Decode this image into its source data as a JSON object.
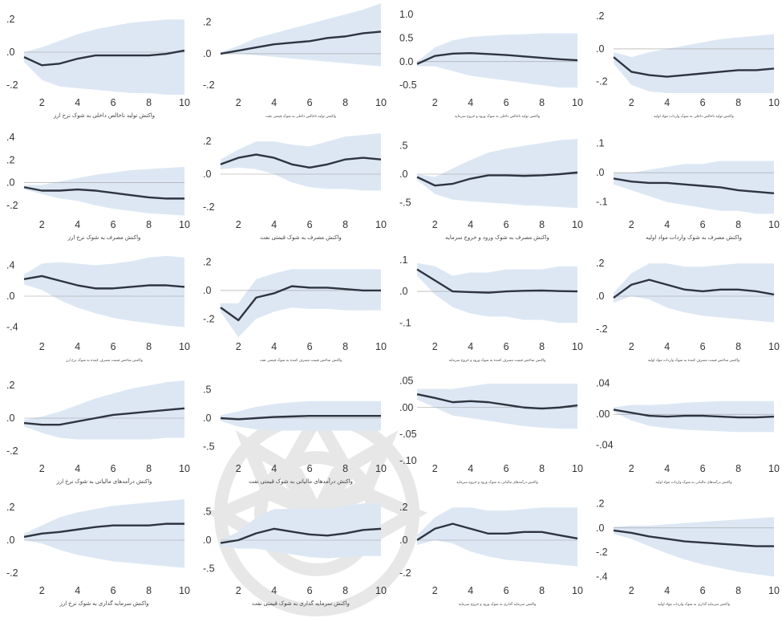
{
  "colors": {
    "band": "#dde7f4",
    "line": "#2e3440",
    "axis": "#9e9e9e",
    "text": "#333333"
  },
  "chart_data": [
    {
      "type": "line",
      "yticks": [
        ".2",
        ".0",
        "-.2"
      ],
      "ylim": [
        -0.26,
        0.26
      ],
      "xticks": [
        "2",
        "4",
        "6",
        "8",
        "10"
      ],
      "xlabel": "واکنش تولید ناخالص داخلی به شوک نرخ ارز",
      "values": [
        -0.03,
        -0.08,
        -0.07,
        -0.04,
        -0.02,
        -0.02,
        -0.02,
        -0.02,
        -0.01,
        0.01
      ],
      "lower": [
        -0.06,
        -0.17,
        -0.21,
        -0.22,
        -0.23,
        -0.24,
        -0.25,
        -0.25,
        -0.26,
        -0.26
      ],
      "upper": [
        0.0,
        0.03,
        0.07,
        0.11,
        0.14,
        0.16,
        0.18,
        0.19,
        0.2,
        0.2
      ]
    },
    {
      "type": "line",
      "yticks": [
        ".2",
        ".0",
        "-.2"
      ],
      "ylim": [
        -0.26,
        0.28
      ],
      "xticks": [
        "2",
        "4",
        "6",
        "8",
        "10"
      ],
      "xlabel": "واکنش تولید ناخالص داخلی به شوک قیمتی نفت",
      "values": [
        0.0,
        0.02,
        0.04,
        0.06,
        0.07,
        0.08,
        0.1,
        0.11,
        0.13,
        0.14
      ],
      "lower": [
        0.0,
        0.0,
        -0.01,
        -0.02,
        -0.03,
        -0.04,
        -0.05,
        -0.06,
        -0.07,
        -0.08
      ],
      "upper": [
        0.01,
        0.05,
        0.1,
        0.13,
        0.16,
        0.19,
        0.22,
        0.25,
        0.28,
        0.32
      ]
    },
    {
      "type": "line",
      "yticks": [
        "1.0",
        "0.5",
        "0.0",
        "-0.5"
      ],
      "ylim": [
        -0.7,
        1.1
      ],
      "xticks": [
        "2",
        "4",
        "6",
        "8",
        "10"
      ],
      "xlabel": "واکنش تولید ناخالص داخلی به شوک ورود و خروج سرمایه",
      "values": [
        -0.05,
        0.12,
        0.17,
        0.18,
        0.16,
        0.14,
        0.11,
        0.08,
        0.05,
        0.03
      ],
      "lower": [
        -0.1,
        -0.1,
        -0.2,
        -0.3,
        -0.35,
        -0.4,
        -0.45,
        -0.5,
        -0.55,
        -0.55
      ],
      "upper": [
        0.0,
        0.3,
        0.45,
        0.52,
        0.55,
        0.57,
        0.58,
        0.6,
        0.6,
        0.6
      ]
    },
    {
      "type": "line",
      "yticks": [
        ".2",
        ".0",
        "-.2"
      ],
      "ylim": [
        -0.28,
        0.24
      ],
      "xticks": [
        "2",
        "4",
        "6",
        "8",
        "10"
      ],
      "xlabel": "واکنش تولید ناخالص داخلی به شوک واردات مواد اولیه",
      "values": [
        -0.05,
        -0.14,
        -0.16,
        -0.17,
        -0.16,
        -0.15,
        -0.14,
        -0.13,
        -0.13,
        -0.12
      ],
      "lower": [
        -0.09,
        -0.22,
        -0.26,
        -0.27,
        -0.27,
        -0.27,
        -0.27,
        -0.27,
        -0.27,
        -0.27
      ],
      "upper": [
        -0.02,
        -0.05,
        -0.02,
        0.0,
        0.02,
        0.04,
        0.06,
        0.07,
        0.08,
        0.09
      ]
    },
    {
      "type": "line",
      "yticks": [
        ".4",
        ".2",
        ".0",
        "-.2"
      ],
      "ylim": [
        -0.3,
        0.45
      ],
      "xticks": [
        "2",
        "4",
        "6",
        "8",
        "10"
      ],
      "xlabel": "واکنش مصرف به شوک نرخ ارز",
      "values": [
        -0.04,
        -0.07,
        -0.07,
        -0.06,
        -0.07,
        -0.09,
        -0.11,
        -0.13,
        -0.14,
        -0.14
      ],
      "lower": [
        -0.06,
        -0.1,
        -0.14,
        -0.16,
        -0.2,
        -0.23,
        -0.25,
        -0.27,
        -0.28,
        -0.29
      ],
      "upper": [
        -0.02,
        -0.02,
        0.01,
        0.04,
        0.07,
        0.09,
        0.11,
        0.12,
        0.13,
        0.14
      ]
    },
    {
      "type": "line",
      "yticks": [
        ".2",
        ".0",
        "-.2"
      ],
      "ylim": [
        -0.26,
        0.26
      ],
      "xticks": [
        "2",
        "4",
        "6",
        "8",
        "10"
      ],
      "xlabel": "واکنش مصرف به شوک قیمتی نفت",
      "values": [
        0.06,
        0.1,
        0.12,
        0.1,
        0.06,
        0.04,
        0.06,
        0.09,
        0.1,
        0.09
      ],
      "lower": [
        0.03,
        0.04,
        0.03,
        0.0,
        -0.05,
        -0.08,
        -0.09,
        -0.09,
        -0.1,
        -0.1
      ],
      "upper": [
        0.09,
        0.15,
        0.2,
        0.2,
        0.18,
        0.17,
        0.2,
        0.23,
        0.24,
        0.25
      ]
    },
    {
      "type": "line",
      "yticks": [
        ".5",
        ".0",
        "-.5"
      ],
      "ylim": [
        -0.75,
        0.75
      ],
      "xticks": [
        "2",
        "4",
        "6",
        "8",
        "10"
      ],
      "xlabel": "واکنش مصرف به شوک ورود و خروج سرمایه",
      "values": [
        -0.05,
        -0.2,
        -0.17,
        -0.08,
        -0.02,
        -0.02,
        -0.03,
        -0.02,
        0.0,
        0.03
      ],
      "lower": [
        -0.1,
        -0.35,
        -0.45,
        -0.48,
        -0.5,
        -0.52,
        -0.55,
        -0.56,
        -0.58,
        -0.6
      ],
      "upper": [
        0.0,
        -0.05,
        0.1,
        0.25,
        0.38,
        0.45,
        0.5,
        0.55,
        0.6,
        0.62
      ]
    },
    {
      "type": "line",
      "yticks": [
        ".1",
        ".0",
        "-.1"
      ],
      "ylim": [
        -0.15,
        0.14
      ],
      "xticks": [
        "2",
        "4",
        "6",
        "8",
        "10"
      ],
      "xlabel": "واکنش مصرف به شوک واردات مواد اولیه",
      "values": [
        -0.02,
        -0.03,
        -0.035,
        -0.035,
        -0.04,
        -0.045,
        -0.05,
        -0.06,
        -0.065,
        -0.07
      ],
      "lower": [
        -0.04,
        -0.06,
        -0.08,
        -0.1,
        -0.11,
        -0.12,
        -0.13,
        -0.13,
        -0.14,
        -0.14
      ],
      "upper": [
        0.0,
        0.0,
        0.01,
        0.02,
        0.03,
        0.03,
        0.04,
        0.04,
        0.04,
        0.04
      ]
    },
    {
      "type": "line",
      "yticks": [
        ".4",
        ".0",
        "-.4"
      ],
      "ylim": [
        -0.55,
        0.55
      ],
      "xticks": [
        "2",
        "4",
        "6",
        "8",
        "10"
      ],
      "xlabel": "واکنش شاخص قیمت مصرف کننده به شوک نرخ ارز",
      "values": [
        0.22,
        0.26,
        0.2,
        0.14,
        0.1,
        0.1,
        0.12,
        0.14,
        0.14,
        0.12
      ],
      "lower": [
        0.15,
        0.08,
        -0.05,
        -0.15,
        -0.22,
        -0.28,
        -0.32,
        -0.35,
        -0.38,
        -0.4
      ],
      "upper": [
        0.28,
        0.42,
        0.44,
        0.42,
        0.4,
        0.42,
        0.45,
        0.5,
        0.52,
        0.5
      ]
    },
    {
      "type": "line",
      "yticks": [
        ".2",
        ".0",
        "-.2"
      ],
      "ylim": [
        -0.34,
        0.26
      ],
      "xticks": [
        "2",
        "4",
        "6",
        "8",
        "10"
      ],
      "xlabel": "واکنش شاخص قیمت مصرف کننده به شوک قیمتی نفت",
      "values": [
        -0.12,
        -0.21,
        -0.05,
        -0.02,
        0.03,
        0.02,
        0.02,
        0.01,
        0.0,
        0.0
      ],
      "lower": [
        -0.15,
        -0.33,
        -0.2,
        -0.15,
        -0.12,
        -0.13,
        -0.13,
        -0.14,
        -0.14,
        -0.14
      ],
      "upper": [
        -0.09,
        -0.09,
        0.08,
        0.12,
        0.15,
        0.15,
        0.15,
        0.15,
        0.15,
        0.15
      ]
    },
    {
      "type": "line",
      "yticks": [
        ".1",
        ".0",
        "-.1"
      ],
      "ylim": [
        -0.15,
        0.12
      ],
      "xticks": [
        "2",
        "4",
        "6",
        "8",
        "10"
      ],
      "xlabel": "واکنش شاخص قیمت مصرف کننده به شوک ورود و خروج سرمایه",
      "values": [
        0.07,
        0.035,
        0.0,
        -0.002,
        -0.004,
        0.0,
        0.002,
        0.003,
        0.001,
        0.0
      ],
      "lower": [
        0.05,
        -0.01,
        -0.05,
        -0.07,
        -0.08,
        -0.08,
        -0.09,
        -0.09,
        -0.1,
        -0.1
      ],
      "upper": [
        0.09,
        0.08,
        0.05,
        0.06,
        0.06,
        0.07,
        0.07,
        0.07,
        0.08,
        0.08
      ]
    },
    {
      "type": "line",
      "yticks": [
        ".2",
        ".0",
        "-.2"
      ],
      "ylim": [
        -0.26,
        0.26
      ],
      "xticks": [
        "2",
        "4",
        "6",
        "8",
        "10"
      ],
      "xlabel": "واکنش شاخص قیمت مصرف کننده به شوک واردات مواد اولیه",
      "values": [
        -0.01,
        0.07,
        0.1,
        0.07,
        0.04,
        0.03,
        0.04,
        0.04,
        0.03,
        0.01
      ],
      "lower": [
        -0.04,
        0.0,
        -0.02,
        -0.07,
        -0.1,
        -0.12,
        -0.13,
        -0.14,
        -0.15,
        -0.16
      ],
      "upper": [
        0.02,
        0.14,
        0.2,
        0.2,
        0.18,
        0.18,
        0.19,
        0.2,
        0.2,
        0.2
      ]
    },
    {
      "type": "line",
      "yticks": [
        ".2",
        ".0",
        "-.2"
      ],
      "ylim": [
        -0.26,
        0.26
      ],
      "xticks": [
        "2",
        "4",
        "6",
        "8",
        "10"
      ],
      "xlabel": "واکنش درآمدهای مالیاتی به شوک نرخ ارز",
      "values": [
        -0.03,
        -0.04,
        -0.04,
        -0.02,
        0.0,
        0.02,
        0.03,
        0.04,
        0.05,
        0.06
      ],
      "lower": [
        -0.05,
        -0.09,
        -0.12,
        -0.13,
        -0.13,
        -0.13,
        -0.13,
        -0.13,
        -0.12,
        -0.12
      ],
      "upper": [
        -0.01,
        0.01,
        0.04,
        0.08,
        0.12,
        0.15,
        0.18,
        0.2,
        0.22,
        0.23
      ]
    },
    {
      "type": "line",
      "yticks": [
        ".5",
        ".0",
        "-.5"
      ],
      "ylim": [
        -0.75,
        0.75
      ],
      "xticks": [
        "2",
        "4",
        "6",
        "8",
        "10"
      ],
      "xlabel": "واکنش درآمدهای مالیاتی به شوک قیمتی نفت",
      "values": [
        0.0,
        -0.02,
        0.0,
        0.02,
        0.03,
        0.04,
        0.04,
        0.04,
        0.04,
        0.04
      ],
      "lower": [
        -0.05,
        -0.15,
        -0.2,
        -0.22,
        -0.22,
        -0.22,
        -0.22,
        -0.22,
        -0.22,
        -0.22
      ],
      "upper": [
        0.05,
        0.12,
        0.2,
        0.25,
        0.28,
        0.3,
        0.3,
        0.3,
        0.3,
        0.3
      ]
    },
    {
      "type": "line",
      "yticks": [
        ".05",
        ".00",
        "-.05",
        "-.10"
      ],
      "ylim": [
        -0.1,
        0.06
      ],
      "xticks": [
        "2",
        "4",
        "6",
        "8",
        "10"
      ],
      "xlabel": "واکنش درآمدهای مالیاتی به شوک ورود و خروج سرمایه",
      "values": [
        0.025,
        0.018,
        0.01,
        0.012,
        0.01,
        0.005,
        0.0,
        -0.002,
        0.0,
        0.004
      ],
      "lower": [
        0.015,
        0.0,
        -0.015,
        -0.02,
        -0.025,
        -0.03,
        -0.035,
        -0.038,
        -0.04,
        -0.04
      ],
      "upper": [
        0.035,
        0.035,
        0.035,
        0.04,
        0.045,
        0.045,
        0.045,
        0.045,
        0.045,
        0.045
      ]
    },
    {
      "type": "line",
      "yticks": [
        ".04",
        ".00",
        "-.04"
      ],
      "ylim": [
        -0.06,
        0.05
      ],
      "xticks": [
        "2",
        "4",
        "6",
        "8",
        "10"
      ],
      "xlabel": "واکنش درآمدهای مالیاتی به شوک واردات مواد اولیه",
      "values": [
        0.006,
        0.002,
        -0.002,
        -0.003,
        -0.002,
        -0.002,
        -0.003,
        -0.004,
        -0.004,
        -0.003
      ],
      "lower": [
        0.003,
        -0.008,
        -0.015,
        -0.018,
        -0.02,
        -0.021,
        -0.022,
        -0.023,
        -0.023,
        -0.023
      ],
      "upper": [
        0.009,
        0.012,
        0.012,
        0.013,
        0.015,
        0.016,
        0.017,
        0.017,
        0.017,
        0.017
      ]
    },
    {
      "type": "line",
      "yticks": [
        ".2",
        ".0",
        "-.2"
      ],
      "ylim": [
        -0.26,
        0.26
      ],
      "xticks": [
        "2",
        "4",
        "6",
        "8",
        "10"
      ],
      "xlabel": "واکنش سرمایه گذاری به شوک نرخ ارز",
      "values": [
        0.02,
        0.04,
        0.05,
        0.065,
        0.08,
        0.09,
        0.09,
        0.09,
        0.1,
        0.1
      ],
      "lower": [
        0.0,
        -0.02,
        -0.06,
        -0.09,
        -0.11,
        -0.13,
        -0.14,
        -0.15,
        -0.16,
        -0.17
      ],
      "upper": [
        0.04,
        0.09,
        0.14,
        0.17,
        0.19,
        0.21,
        0.22,
        0.23,
        0.24,
        0.25
      ]
    },
    {
      "type": "line",
      "yticks": [
        ".5",
        ".0",
        "-.5"
      ],
      "ylim": [
        -0.75,
        0.75
      ],
      "xticks": [
        "2",
        "4",
        "6",
        "8",
        "10"
      ],
      "xlabel": "واکنش سرمایه گذاری به شوک قیمتی نفت",
      "values": [
        -0.05,
        0.0,
        0.12,
        0.2,
        0.15,
        0.1,
        0.08,
        0.12,
        0.18,
        0.2
      ],
      "lower": [
        -0.1,
        -0.15,
        -0.15,
        -0.2,
        -0.25,
        -0.3,
        -0.32,
        -0.3,
        -0.28,
        -0.28
      ],
      "upper": [
        0.0,
        0.15,
        0.4,
        0.55,
        0.55,
        0.55,
        0.55,
        0.6,
        0.65,
        0.65
      ]
    },
    {
      "type": "line",
      "yticks": [
        ".2",
        ".0",
        "-.2"
      ],
      "ylim": [
        -0.26,
        0.26
      ],
      "xticks": [
        "2",
        "4",
        "6",
        "8",
        "10"
      ],
      "xlabel": "واکنش سرمایه گذاری به شوک ورود و خروج سرمایه",
      "values": [
        0.0,
        0.07,
        0.1,
        0.07,
        0.04,
        0.04,
        0.05,
        0.05,
        0.03,
        0.01
      ],
      "lower": [
        -0.03,
        0.0,
        -0.02,
        -0.07,
        -0.1,
        -0.12,
        -0.13,
        -0.14,
        -0.15,
        -0.16
      ],
      "upper": [
        0.03,
        0.14,
        0.2,
        0.2,
        0.18,
        0.18,
        0.19,
        0.2,
        0.2,
        0.2
      ]
    },
    {
      "type": "line",
      "yticks": [
        ".2",
        ".0",
        "-.2",
        "-.4"
      ],
      "ylim": [
        -0.45,
        0.25
      ],
      "xticks": [
        "2",
        "4",
        "6",
        "8",
        "10"
      ],
      "xlabel": "واکنش سرمایه گذاری به شوک واردات مواد اولیه",
      "values": [
        -0.02,
        -0.04,
        -0.07,
        -0.09,
        -0.11,
        -0.12,
        -0.13,
        -0.14,
        -0.15,
        -0.15
      ],
      "lower": [
        -0.05,
        -0.09,
        -0.15,
        -0.21,
        -0.26,
        -0.3,
        -0.33,
        -0.36,
        -0.38,
        -0.4
      ],
      "upper": [
        0.01,
        0.02,
        0.02,
        0.03,
        0.04,
        0.05,
        0.06,
        0.07,
        0.08,
        0.09
      ]
    }
  ]
}
